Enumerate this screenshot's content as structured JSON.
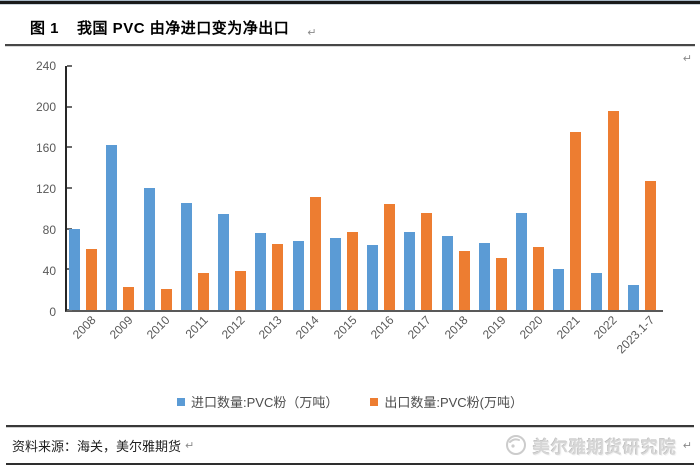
{
  "header": {
    "figure_label": "图 1",
    "figure_title": "我国 PVC 由净进口变为净出口"
  },
  "icons": {
    "return_mark": "↵"
  },
  "chart_data": {
    "type": "bar",
    "title": "图 1 我国 PVC 由净进口变为净出口",
    "categories": [
      "2008",
      "2009",
      "2010",
      "2011",
      "2012",
      "2013",
      "2014",
      "2015",
      "2016",
      "2017",
      "2018",
      "2019",
      "2020",
      "2021",
      "2022",
      "2023.1-7"
    ],
    "series": [
      {
        "name": "进口数量:PVC粉（万吨）",
        "color": "#5B9BD5",
        "values": [
          80,
          162,
          120,
          105,
          94,
          76,
          68,
          71,
          64,
          77,
          73,
          66,
          95,
          40,
          36,
          25
        ]
      },
      {
        "name": "出口数量:PVC粉(万吨）",
        "color": "#ED7D31",
        "values": [
          60,
          23,
          21,
          36,
          38,
          65,
          111,
          77,
          104,
          95,
          58,
          51,
          62,
          175,
          196,
          127
        ]
      }
    ],
    "xlabel": "",
    "ylabel": "",
    "ylim": [
      0,
      240
    ],
    "yticks": [
      0,
      40,
      80,
      120,
      160,
      200,
      240
    ],
    "grid": false,
    "legend_position": "bottom"
  },
  "footer": {
    "source_text": "资料来源：海关，美尔雅期货",
    "logo_text": "美尔雅期货研究院"
  }
}
